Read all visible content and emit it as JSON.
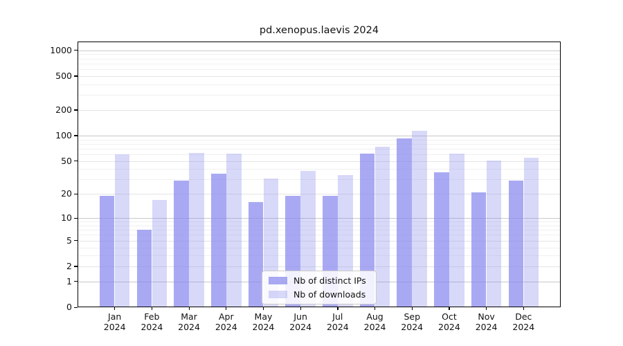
{
  "chart_data": {
    "type": "bar",
    "title": "pd.xenopus.laevis 2024",
    "categories": [
      "Jan 2024",
      "Feb 2024",
      "Mar 2024",
      "Apr 2024",
      "May 2024",
      "Jun 2024",
      "Jul 2024",
      "Aug 2024",
      "Sep 2024",
      "Oct 2024",
      "Nov 2024",
      "Dec 2024"
    ],
    "series": [
      {
        "name": "Nb of distinct IPs",
        "color": "rgba(136,136,238,0.72)",
        "values": [
          19,
          7,
          29,
          35,
          16,
          19,
          19,
          61,
          92,
          37,
          21,
          29
        ]
      },
      {
        "name": "Nb of downloads",
        "color": "rgba(136,136,238,0.33)",
        "values": [
          60,
          17,
          62,
          61,
          31,
          38,
          34,
          74,
          113,
          61,
          51,
          55
        ]
      }
    ],
    "yscale": "log1p",
    "y_ticks": [
      0,
      1,
      2,
      5,
      10,
      20,
      50,
      100,
      200,
      500,
      1000
    ],
    "ylim": [
      0,
      1268
    ],
    "xlabel": "",
    "ylabel": "",
    "grid": true,
    "legend_position": "lower center",
    "colors": {
      "grid_major": "#c8c8c8",
      "grid_mid": "#e4e4e4",
      "grid_minor": "#f0f0f0",
      "bar_base": "#8888ee"
    }
  }
}
